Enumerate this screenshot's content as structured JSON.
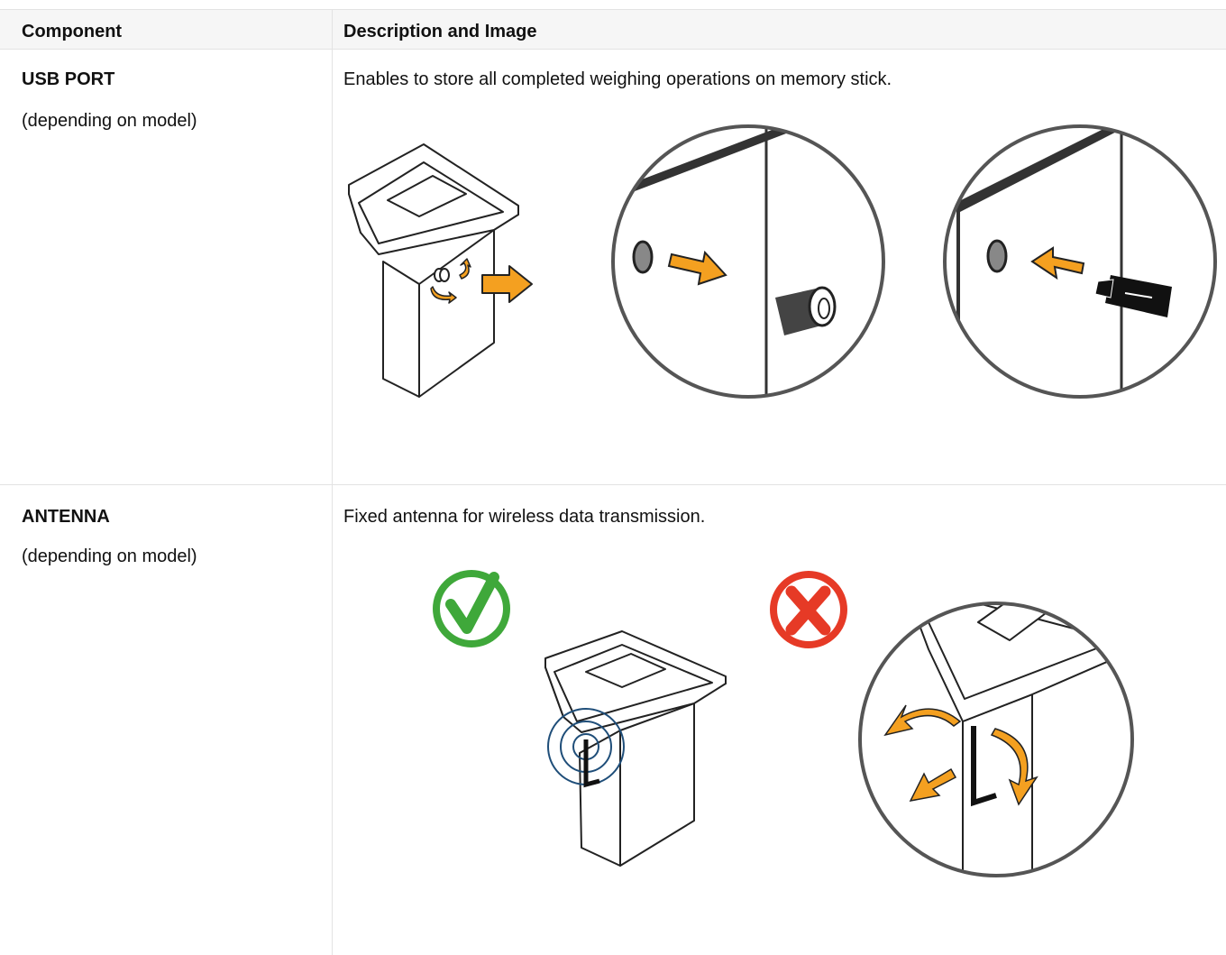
{
  "table": {
    "header": [
      "Component",
      "Description and Image"
    ],
    "rows": [
      {
        "component": "USB PORT",
        "note": "(depending on model)",
        "description": "Enables to store all completed weighing operations on memory stick."
      },
      {
        "component": "ANTENNA",
        "note": "(depending on model)",
        "description": "Fixed antenna for wireless data transmission."
      }
    ]
  }
}
